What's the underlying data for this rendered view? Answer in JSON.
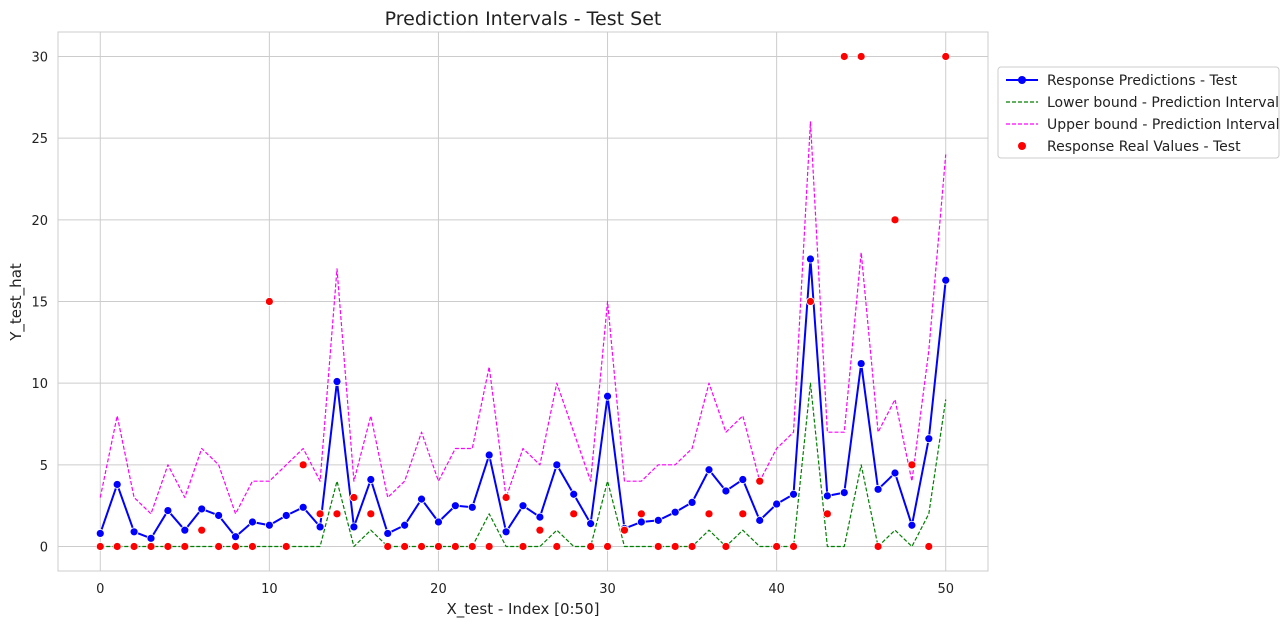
{
  "chart_data": {
    "type": "line",
    "title": "Prediction Intervals - Test Set",
    "xlabel": "X_test - Index [0:50]",
    "ylabel": "Y_test_hat",
    "xlim": [
      -2.5,
      52.5
    ],
    "ylim": [
      -1.5,
      31.5
    ],
    "xticks": [
      0,
      10,
      20,
      30,
      40,
      50
    ],
    "yticks": [
      0,
      5,
      10,
      15,
      20,
      25,
      30
    ],
    "grid": true,
    "legend_position": "outside-upper-right",
    "x": [
      0,
      1,
      2,
      3,
      4,
      5,
      6,
      7,
      8,
      9,
      10,
      11,
      12,
      13,
      14,
      15,
      16,
      17,
      18,
      19,
      20,
      21,
      22,
      23,
      24,
      25,
      26,
      27,
      28,
      29,
      30,
      31,
      32,
      33,
      34,
      35,
      36,
      37,
      38,
      39,
      40,
      41,
      42,
      43,
      44,
      45,
      46,
      47,
      48,
      49,
      50
    ],
    "series": [
      {
        "name": "Response Predictions - Test",
        "style": "line-marker",
        "color": "#0000ff",
        "values": [
          0.8,
          3.8,
          0.9,
          0.5,
          2.2,
          1.0,
          2.3,
          1.9,
          0.6,
          1.5,
          1.3,
          1.9,
          2.4,
          1.2,
          10.1,
          1.2,
          4.1,
          0.8,
          1.3,
          2.9,
          1.5,
          2.5,
          2.4,
          5.6,
          0.9,
          2.5,
          1.8,
          5.0,
          3.2,
          1.4,
          9.2,
          1.1,
          1.5,
          1.6,
          2.1,
          2.7,
          4.7,
          3.4,
          4.1,
          1.6,
          2.6,
          3.2,
          17.6,
          3.1,
          3.3,
          11.2,
          3.5,
          4.5,
          1.3,
          6.6,
          16.3
        ]
      },
      {
        "name": "Lower bound - Prediction Interval",
        "style": "dashed",
        "color": "#008000",
        "values": [
          0,
          0,
          0,
          0,
          0,
          0,
          0,
          0,
          0,
          0,
          0,
          0,
          0,
          0,
          4,
          0,
          1,
          0,
          0,
          0,
          0,
          0,
          0,
          2,
          0,
          0,
          0,
          1,
          0,
          0,
          4,
          0,
          0,
          0,
          0,
          0,
          1,
          0,
          1,
          0,
          0,
          0,
          10,
          0,
          0,
          5,
          0,
          1,
          0,
          2,
          9
        ]
      },
      {
        "name": "Upper bound - Prediction Interval",
        "style": "dashed",
        "color": "#ff00ff",
        "values": [
          3,
          8,
          3,
          2,
          5,
          3,
          6,
          5,
          2,
          4,
          4,
          5,
          6,
          4,
          17,
          4,
          8,
          3,
          4,
          7,
          4,
          6,
          6,
          11,
          3,
          6,
          5,
          10,
          7,
          4,
          15,
          4,
          4,
          5,
          5,
          6,
          10,
          7,
          8,
          4,
          6,
          7,
          26,
          7,
          7,
          18,
          7,
          9,
          4,
          12,
          24
        ]
      },
      {
        "name": "Response Real Values - Test",
        "style": "scatter",
        "color": "#ff0000",
        "values": [
          0,
          0,
          0,
          0,
          0,
          0,
          1,
          0,
          0,
          0,
          15,
          0,
          5,
          2,
          2,
          3,
          2,
          0,
          0,
          0,
          0,
          0,
          0,
          0,
          3,
          0,
          1,
          0,
          2,
          0,
          0,
          1,
          2,
          0,
          0,
          0,
          2,
          0,
          2,
          4,
          0,
          0,
          15,
          2,
          30,
          30,
          0,
          20,
          5,
          0,
          30
        ]
      }
    ]
  }
}
